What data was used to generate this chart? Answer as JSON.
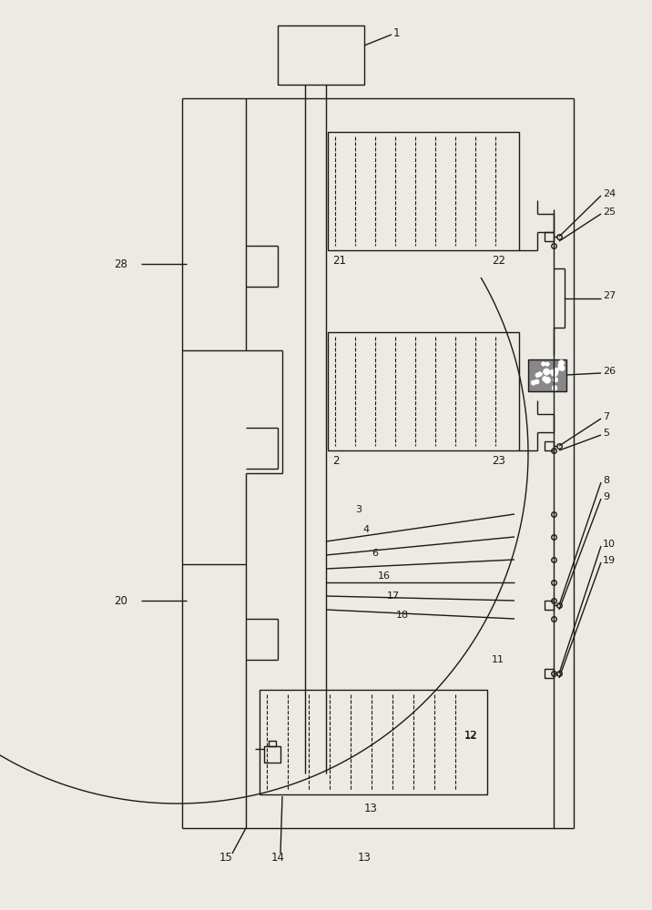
{
  "bg_color": "#ede9e3",
  "line_color": "#1a1a1a",
  "lw": 1.0,
  "fig_w": 7.16,
  "fig_h": 10.0,
  "dpi": 100
}
